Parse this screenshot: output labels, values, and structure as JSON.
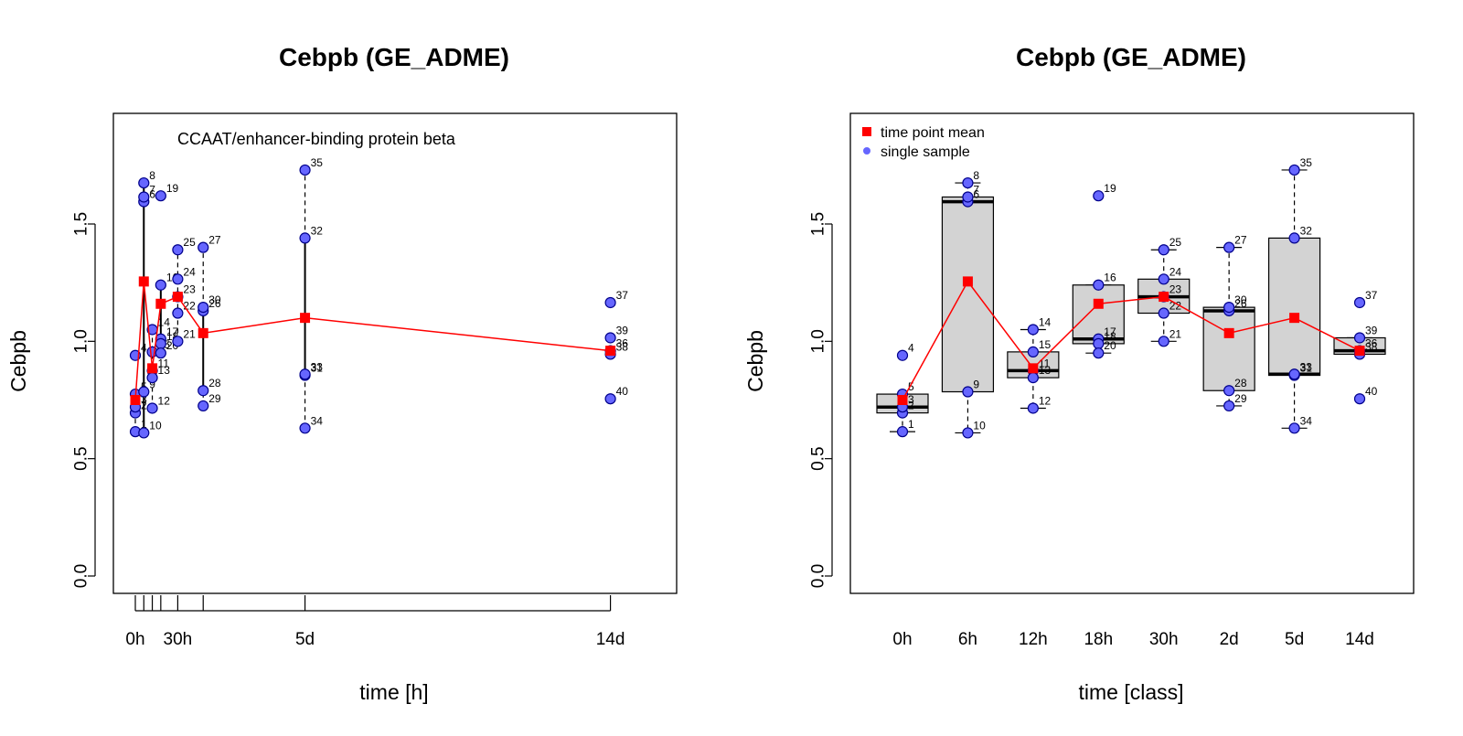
{
  "colors": {
    "mean": "#ff0000",
    "point_fill": "#6666ff",
    "point_stroke": "#00008b",
    "box_fill": "#d3d3d3",
    "axis": "#000000"
  },
  "chart_data": [
    {
      "type": "scatter",
      "title": "Cebpb (GE_ADME)",
      "subtitle": "CCAAT/enhancer-binding protein beta",
      "xlabel": "time [h]",
      "ylabel": "Cebpb",
      "ylim": [
        0,
        2.0
      ],
      "xlim": [
        -5,
        350
      ],
      "y_ticks": [
        0.0,
        0.5,
        1.0,
        1.5
      ],
      "y_tick_labels": [
        "0.0",
        "0.5",
        "1.0",
        "1.5"
      ],
      "x_ticks": [
        0,
        6,
        12,
        18,
        30,
        48,
        120,
        336
      ],
      "x_tick_labels": [
        {
          "x": 0,
          "label": "0h"
        },
        {
          "x": 30,
          "label": "30h"
        },
        {
          "x": 120,
          "label": "5d"
        },
        {
          "x": 336,
          "label": "14d"
        }
      ],
      "groups": [
        {
          "x": 0,
          "range": [
            0.615,
            0.775
          ],
          "style": "dashed"
        },
        {
          "x": 6,
          "range": [
            0.61,
            1.675
          ],
          "style": "solid"
        },
        {
          "x": 12,
          "range": [
            0.715,
            1.05
          ],
          "style": "dashed"
        },
        {
          "x": 18,
          "range": [
            0.95,
            1.24
          ],
          "style": "solid"
        },
        {
          "x": 30,
          "range": [
            1.0,
            1.39
          ],
          "style": "dashed"
        },
        {
          "x": 48,
          "range": [
            0.725,
            1.4
          ],
          "style": "dashed_solid"
        },
        {
          "x": 120,
          "range": [
            0.63,
            1.73
          ],
          "style": "dashed_solid"
        },
        {
          "x": 336,
          "range": [
            0.755,
            1.165
          ],
          "style": "none"
        }
      ],
      "points": [
        {
          "x": 0,
          "y": 0.615,
          "label": "1"
        },
        {
          "x": 0,
          "y": 0.695,
          "label": "2"
        },
        {
          "x": 0,
          "y": 0.72,
          "label": "3"
        },
        {
          "x": 0,
          "y": 0.94,
          "label": "4"
        },
        {
          "x": 0,
          "y": 0.775,
          "label": "5"
        },
        {
          "x": 6,
          "y": 1.595,
          "label": "6"
        },
        {
          "x": 6,
          "y": 1.615,
          "label": "7"
        },
        {
          "x": 6,
          "y": 1.675,
          "label": "8"
        },
        {
          "x": 6,
          "y": 0.785,
          "label": "9"
        },
        {
          "x": 6,
          "y": 0.61,
          "label": "10"
        },
        {
          "x": 12,
          "y": 0.875,
          "label": "11"
        },
        {
          "x": 12,
          "y": 0.715,
          "label": "12"
        },
        {
          "x": 12,
          "y": 0.845,
          "label": "13"
        },
        {
          "x": 12,
          "y": 1.05,
          "label": "14"
        },
        {
          "x": 12,
          "y": 0.955,
          "label": "15"
        },
        {
          "x": 18,
          "y": 1.24,
          "label": "16"
        },
        {
          "x": 18,
          "y": 1.01,
          "label": "17"
        },
        {
          "x": 18,
          "y": 0.99,
          "label": "18"
        },
        {
          "x": 18,
          "y": 1.62,
          "label": "19"
        },
        {
          "x": 18,
          "y": 0.95,
          "label": "20"
        },
        {
          "x": 30,
          "y": 1.0,
          "label": "21"
        },
        {
          "x": 30,
          "y": 1.12,
          "label": "22"
        },
        {
          "x": 30,
          "y": 1.19,
          "label": "23"
        },
        {
          "x": 30,
          "y": 1.265,
          "label": "24"
        },
        {
          "x": 30,
          "y": 1.39,
          "label": "25"
        },
        {
          "x": 48,
          "y": 1.13,
          "label": "26"
        },
        {
          "x": 48,
          "y": 1.4,
          "label": "27"
        },
        {
          "x": 48,
          "y": 0.79,
          "label": "28"
        },
        {
          "x": 48,
          "y": 0.725,
          "label": "29"
        },
        {
          "x": 48,
          "y": 1.145,
          "label": "30"
        },
        {
          "x": 120,
          "y": 0.855,
          "label": "31"
        },
        {
          "x": 120,
          "y": 1.44,
          "label": "32"
        },
        {
          "x": 120,
          "y": 0.86,
          "label": "33"
        },
        {
          "x": 120,
          "y": 0.63,
          "label": "34"
        },
        {
          "x": 120,
          "y": 1.73,
          "label": "35"
        },
        {
          "x": 336,
          "y": 0.96,
          "label": "36"
        },
        {
          "x": 336,
          "y": 1.165,
          "label": "37"
        },
        {
          "x": 336,
          "y": 0.945,
          "label": "38"
        },
        {
          "x": 336,
          "y": 1.015,
          "label": "39"
        },
        {
          "x": 336,
          "y": 0.755,
          "label": "40"
        }
      ],
      "means": [
        {
          "x": 0,
          "y": 0.75
        },
        {
          "x": 6,
          "y": 1.255
        },
        {
          "x": 12,
          "y": 0.885
        },
        {
          "x": 18,
          "y": 1.16
        },
        {
          "x": 30,
          "y": 1.19
        },
        {
          "x": 48,
          "y": 1.035
        },
        {
          "x": 120,
          "y": 1.1
        },
        {
          "x": 336,
          "y": 0.96
        }
      ]
    },
    {
      "type": "box",
      "title": "Cebpb (GE_ADME)",
      "xlabel": "time [class]",
      "ylabel": "Cebpb",
      "ylim": [
        0,
        2.0
      ],
      "y_ticks": [
        0.0,
        0.5,
        1.0,
        1.5
      ],
      "y_tick_labels": [
        "0.0",
        "0.5",
        "1.0",
        "1.5"
      ],
      "categories": [
        "0h",
        "6h",
        "12h",
        "18h",
        "30h",
        "2d",
        "5d",
        "14d"
      ],
      "legend": [
        {
          "label": "time point mean",
          "kind": "mean"
        },
        {
          "label": "single sample",
          "kind": "point"
        }
      ],
      "boxes": [
        {
          "q1": 0.695,
          "median": 0.72,
          "q3": 0.775,
          "whisker_low": 0.615,
          "whisker_high": 0.775
        },
        {
          "q1": 0.785,
          "median": 1.595,
          "q3": 1.615,
          "whisker_low": 0.61,
          "whisker_high": 1.675
        },
        {
          "q1": 0.845,
          "median": 0.875,
          "q3": 0.955,
          "whisker_low": 0.715,
          "whisker_high": 1.05
        },
        {
          "q1": 0.99,
          "median": 1.01,
          "q3": 1.24,
          "whisker_low": 0.95,
          "whisker_high": 1.24
        },
        {
          "q1": 1.12,
          "median": 1.19,
          "q3": 1.265,
          "whisker_low": 1.0,
          "whisker_high": 1.39
        },
        {
          "q1": 0.79,
          "median": 1.13,
          "q3": 1.145,
          "whisker_low": 0.725,
          "whisker_high": 1.4
        },
        {
          "q1": 0.855,
          "median": 0.86,
          "q3": 1.44,
          "whisker_low": 0.63,
          "whisker_high": 1.73
        },
        {
          "q1": 0.945,
          "median": 0.96,
          "q3": 1.015,
          "whisker_low": 0.945,
          "whisker_high": 1.015
        }
      ],
      "points": [
        {
          "x": 0,
          "y": 0.615,
          "label": "1"
        },
        {
          "x": 0,
          "y": 0.695,
          "label": "2"
        },
        {
          "x": 0,
          "y": 0.72,
          "label": "3"
        },
        {
          "x": 0,
          "y": 0.94,
          "label": "4"
        },
        {
          "x": 0,
          "y": 0.775,
          "label": "5"
        },
        {
          "x": 1,
          "y": 1.595,
          "label": "6"
        },
        {
          "x": 1,
          "y": 1.615,
          "label": "7"
        },
        {
          "x": 1,
          "y": 1.675,
          "label": "8"
        },
        {
          "x": 1,
          "y": 0.785,
          "label": "9"
        },
        {
          "x": 1,
          "y": 0.61,
          "label": "10"
        },
        {
          "x": 2,
          "y": 0.875,
          "label": "11"
        },
        {
          "x": 2,
          "y": 0.715,
          "label": "12"
        },
        {
          "x": 2,
          "y": 0.845,
          "label": "13"
        },
        {
          "x": 2,
          "y": 1.05,
          "label": "14"
        },
        {
          "x": 2,
          "y": 0.955,
          "label": "15"
        },
        {
          "x": 3,
          "y": 1.24,
          "label": "16"
        },
        {
          "x": 3,
          "y": 1.01,
          "label": "17"
        },
        {
          "x": 3,
          "y": 0.99,
          "label": "18"
        },
        {
          "x": 3,
          "y": 1.62,
          "label": "19"
        },
        {
          "x": 3,
          "y": 0.95,
          "label": "20"
        },
        {
          "x": 4,
          "y": 1.0,
          "label": "21"
        },
        {
          "x": 4,
          "y": 1.12,
          "label": "22"
        },
        {
          "x": 4,
          "y": 1.19,
          "label": "23"
        },
        {
          "x": 4,
          "y": 1.265,
          "label": "24"
        },
        {
          "x": 4,
          "y": 1.39,
          "label": "25"
        },
        {
          "x": 5,
          "y": 1.13,
          "label": "26"
        },
        {
          "x": 5,
          "y": 1.4,
          "label": "27"
        },
        {
          "x": 5,
          "y": 0.79,
          "label": "28"
        },
        {
          "x": 5,
          "y": 0.725,
          "label": "29"
        },
        {
          "x": 5,
          "y": 1.145,
          "label": "30"
        },
        {
          "x": 6,
          "y": 0.855,
          "label": "31"
        },
        {
          "x": 6,
          "y": 1.44,
          "label": "32"
        },
        {
          "x": 6,
          "y": 0.86,
          "label": "33"
        },
        {
          "x": 6,
          "y": 0.63,
          "label": "34"
        },
        {
          "x": 6,
          "y": 1.73,
          "label": "35"
        },
        {
          "x": 7,
          "y": 0.96,
          "label": "36"
        },
        {
          "x": 7,
          "y": 1.165,
          "label": "37"
        },
        {
          "x": 7,
          "y": 0.945,
          "label": "38"
        },
        {
          "x": 7,
          "y": 1.015,
          "label": "39"
        },
        {
          "x": 7,
          "y": 0.755,
          "label": "40"
        }
      ],
      "means": [
        0.75,
        1.255,
        0.885,
        1.16,
        1.19,
        1.035,
        1.1,
        0.96
      ]
    }
  ]
}
